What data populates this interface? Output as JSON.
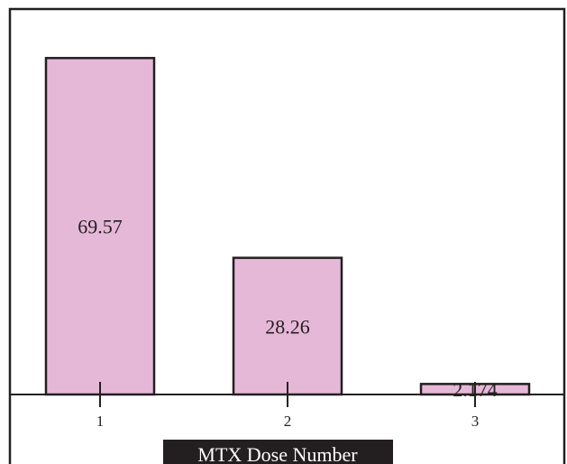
{
  "chart_data": {
    "type": "bar",
    "categories": [
      "1",
      "2",
      "3"
    ],
    "values": [
      69.57,
      28.26,
      2.174
    ],
    "data_labels": [
      "69.57",
      "28.26",
      "2.174"
    ],
    "xlabel": "MTX Dose Number",
    "ylabel": "",
    "title": "",
    "ylim": [
      0,
      70
    ],
    "grid": false,
    "colors": {
      "bar_fill": "#e6b8d8",
      "stroke": "#231f20",
      "background": "#ffffff"
    }
  }
}
